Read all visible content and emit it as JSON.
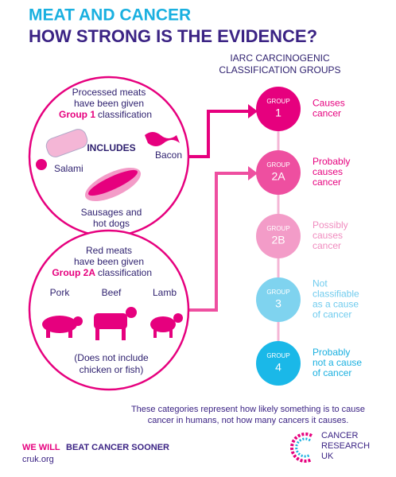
{
  "header": {
    "title": "MEAT AND CANCER",
    "subtitle": "HOW STRONG IS THE EVIDENCE?"
  },
  "groups_heading": [
    "IARC CARCINOGENIC",
    "CLASSIFICATION GROUPS"
  ],
  "processed": {
    "lines": [
      "Processed meats",
      "have been given"
    ],
    "group": "Group 1",
    "classification": "classification",
    "includes": "INCLUDES",
    "bacon": "Bacon",
    "salami": "Salami",
    "sausages": [
      "Sausages and",
      "hot dogs"
    ]
  },
  "red": {
    "lines": [
      "Red meats",
      "have been given"
    ],
    "group": "Group 2A",
    "classification": "classification",
    "pork": "Pork",
    "beef": "Beef",
    "lamb": "Lamb",
    "note": [
      "(Does not include",
      "chicken or fish)"
    ]
  },
  "groups": [
    {
      "label": "GROUP",
      "number": "1",
      "description": [
        "Causes",
        "cancer"
      ]
    },
    {
      "label": "GROUP",
      "number": "2A",
      "description": [
        "Probably",
        "causes",
        "cancer"
      ]
    },
    {
      "label": "GROUP",
      "number": "2B",
      "description": [
        "Possibly",
        "causes",
        "cancer"
      ]
    },
    {
      "label": "GROUP",
      "number": "3",
      "description": [
        "Not",
        "classifiable",
        "as a cause",
        "of cancer"
      ]
    },
    {
      "label": "GROUP",
      "number": "4",
      "description": [
        "Probably",
        "not a cause",
        "of cancer"
      ]
    }
  ],
  "footnote": [
    "These categories represent how likely something is to cause",
    "cancer in humans, not how many cancers it causes."
  ],
  "footer": {
    "slogan_a": "WE WILL",
    "slogan_b": "BEAT CANCER SOONER",
    "url": "cruk.org",
    "logo": [
      "CANCER",
      "RESEARCH",
      "UK"
    ]
  }
}
